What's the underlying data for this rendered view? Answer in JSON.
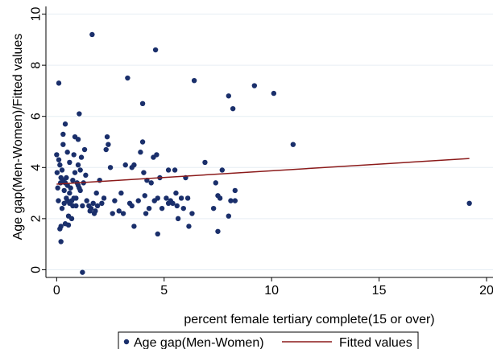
{
  "chart_data": {
    "type": "scatter",
    "xlabel": "percent female tertiary complete(15 or over)",
    "ylabel": "Age gap(Men-Women)/Fitted values",
    "xlim": [
      -0.5,
      20.3
    ],
    "ylim": [
      -0.3,
      10.3
    ],
    "x_ticks": [
      0,
      5,
      10,
      15,
      20
    ],
    "y_ticks": [
      0,
      2,
      4,
      6,
      8,
      10
    ],
    "grid": "horizontal",
    "legend_position": "bottom",
    "colors": {
      "points": "#1a2f6b",
      "fitted": "#8b1a1a",
      "grid": "#e6eef4",
      "axis": "#000000"
    },
    "series": [
      {
        "name": "Age gap(Men-Women)",
        "kind": "scatter",
        "points": [
          [
            0.0,
            4.5
          ],
          [
            0.02,
            3.8
          ],
          [
            0.05,
            3.2
          ],
          [
            0.08,
            2.7
          ],
          [
            0.1,
            4.3
          ],
          [
            0.1,
            7.3
          ],
          [
            0.15,
            4.1
          ],
          [
            0.15,
            1.6
          ],
          [
            0.18,
            3.4
          ],
          [
            0.2,
            1.7
          ],
          [
            0.2,
            3.6
          ],
          [
            0.2,
            1.1
          ],
          [
            0.25,
            3.9
          ],
          [
            0.25,
            2.4
          ],
          [
            0.3,
            5.3
          ],
          [
            0.3,
            4.9
          ],
          [
            0.3,
            3.5
          ],
          [
            0.35,
            3.1
          ],
          [
            0.35,
            2.6
          ],
          [
            0.4,
            5.7
          ],
          [
            0.4,
            3.4
          ],
          [
            0.4,
            1.8
          ],
          [
            0.45,
            2.8
          ],
          [
            0.45,
            3.6
          ],
          [
            0.5,
            4.6
          ],
          [
            0.5,
            3.3
          ],
          [
            0.5,
            2.7
          ],
          [
            0.55,
            2.1
          ],
          [
            0.55,
            1.75
          ],
          [
            0.6,
            4.2
          ],
          [
            0.6,
            3.0
          ],
          [
            0.6,
            2.6
          ],
          [
            0.65,
            3.2
          ],
          [
            0.7,
            2.7
          ],
          [
            0.7,
            2.0
          ],
          [
            0.75,
            3.5
          ],
          [
            0.75,
            2.5
          ],
          [
            0.8,
            4.5
          ],
          [
            0.8,
            2.8
          ],
          [
            0.85,
            5.2
          ],
          [
            0.85,
            3.8
          ],
          [
            0.9,
            2.8
          ],
          [
            0.9,
            2.5
          ],
          [
            0.95,
            3.4
          ],
          [
            1.0,
            5.1
          ],
          [
            1.0,
            4.1
          ],
          [
            1.0,
            3.3
          ],
          [
            1.05,
            6.1
          ],
          [
            1.05,
            3.2
          ],
          [
            1.1,
            3.9
          ],
          [
            1.1,
            3.1
          ],
          [
            1.15,
            4.4
          ],
          [
            1.2,
            2.5
          ],
          [
            1.2,
            -0.1
          ],
          [
            1.25,
            3.4
          ],
          [
            1.3,
            4.7
          ],
          [
            1.35,
            3.7
          ],
          [
            1.4,
            2.7
          ],
          [
            1.5,
            2.5
          ],
          [
            1.55,
            2.3
          ],
          [
            1.6,
            2.4
          ],
          [
            1.65,
            9.2
          ],
          [
            1.7,
            2.6
          ],
          [
            1.75,
            2.2
          ],
          [
            1.8,
            2.3
          ],
          [
            1.85,
            3.0
          ],
          [
            1.9,
            2.5
          ],
          [
            2.0,
            3.5
          ],
          [
            2.1,
            2.6
          ],
          [
            2.2,
            2.8
          ],
          [
            2.3,
            4.7
          ],
          [
            2.35,
            5.2
          ],
          [
            2.4,
            4.9
          ],
          [
            2.5,
            4.0
          ],
          [
            2.6,
            2.2
          ],
          [
            2.7,
            2.7
          ],
          [
            2.9,
            2.3
          ],
          [
            3.0,
            3.0
          ],
          [
            3.1,
            2.2
          ],
          [
            3.2,
            4.1
          ],
          [
            3.3,
            7.5
          ],
          [
            3.4,
            2.6
          ],
          [
            3.5,
            2.5
          ],
          [
            3.5,
            4.0
          ],
          [
            3.6,
            1.7
          ],
          [
            3.6,
            4.1
          ],
          [
            3.8,
            2.7
          ],
          [
            3.9,
            4.6
          ],
          [
            4.0,
            5.0
          ],
          [
            4.0,
            6.5
          ],
          [
            4.05,
            3.8
          ],
          [
            4.1,
            2.9
          ],
          [
            4.15,
            2.2
          ],
          [
            4.2,
            3.5
          ],
          [
            4.3,
            2.4
          ],
          [
            4.4,
            3.4
          ],
          [
            4.5,
            4.4
          ],
          [
            4.55,
            2.7
          ],
          [
            4.6,
            8.6
          ],
          [
            4.65,
            4.5
          ],
          [
            4.7,
            2.8
          ],
          [
            4.7,
            1.4
          ],
          [
            4.8,
            3.6
          ],
          [
            4.9,
            2.4
          ],
          [
            5.1,
            2.8
          ],
          [
            5.2,
            2.6
          ],
          [
            5.2,
            3.9
          ],
          [
            5.3,
            2.7
          ],
          [
            5.4,
            2.6
          ],
          [
            5.5,
            3.9
          ],
          [
            5.55,
            3.0
          ],
          [
            5.6,
            2.5
          ],
          [
            5.65,
            2.0
          ],
          [
            5.8,
            2.8
          ],
          [
            5.9,
            2.4
          ],
          [
            6.0,
            3.6
          ],
          [
            6.1,
            2.8
          ],
          [
            6.15,
            1.7
          ],
          [
            6.3,
            2.2
          ],
          [
            6.4,
            7.4
          ],
          [
            6.9,
            4.2
          ],
          [
            7.3,
            2.4
          ],
          [
            7.4,
            3.4
          ],
          [
            7.5,
            2.9
          ],
          [
            7.5,
            1.5
          ],
          [
            7.6,
            2.8
          ],
          [
            7.7,
            3.9
          ],
          [
            8.0,
            6.8
          ],
          [
            8.0,
            2.1
          ],
          [
            8.1,
            2.7
          ],
          [
            8.2,
            6.3
          ],
          [
            8.3,
            3.1
          ],
          [
            8.3,
            2.7
          ],
          [
            9.2,
            7.2
          ],
          [
            10.1,
            6.9
          ],
          [
            11.0,
            4.9
          ],
          [
            19.2,
            2.6
          ]
        ]
      },
      {
        "name": "Fitted values",
        "kind": "line",
        "points": [
          [
            0.0,
            3.35
          ],
          [
            19.2,
            4.35
          ]
        ]
      }
    ]
  }
}
